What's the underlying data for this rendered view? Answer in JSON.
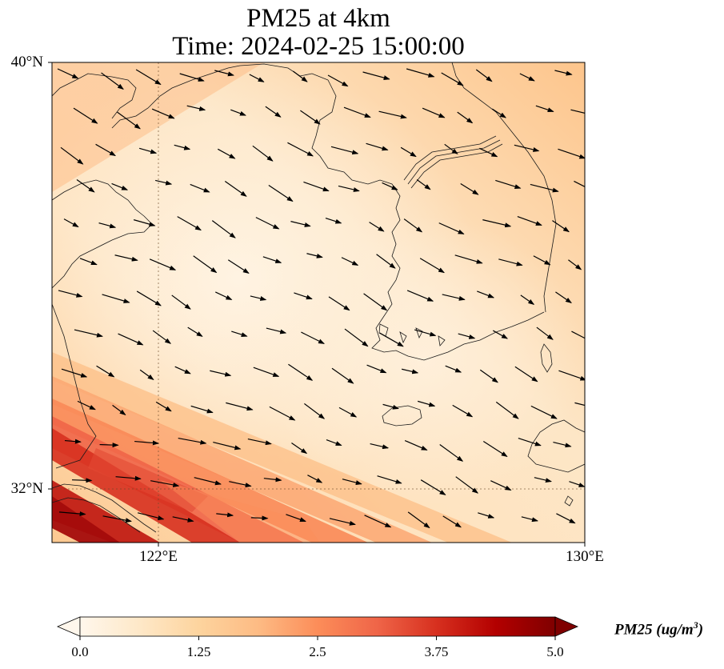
{
  "title": {
    "line1": "PM25 at 4km",
    "line2": "Time: 2024-02-25 15:00:00"
  },
  "map": {
    "lat_labels": [
      "40°N",
      "32°N"
    ],
    "lon_labels": [
      "122°E",
      "130°E"
    ],
    "gridlines": "dotted at 122°E and 32°N",
    "extent": {
      "lon": [
        120,
        130
      ],
      "lat": [
        31,
        40
      ]
    }
  },
  "colorbar": {
    "label": "PM25 (ug/m",
    "label_sup": "3",
    "label_end": ")",
    "ticks": [
      "0.0",
      "1.25",
      "2.5",
      "3.75",
      "5.0"
    ],
    "range": [
      0,
      5
    ],
    "extend": "both",
    "colormap": "OrRd",
    "colors": [
      "#fff7ec",
      "#fee8c8",
      "#fdd49e",
      "#fdbb84",
      "#fc8d59",
      "#ef6548",
      "#d7301f",
      "#b30000",
      "#7f0000"
    ]
  }
}
